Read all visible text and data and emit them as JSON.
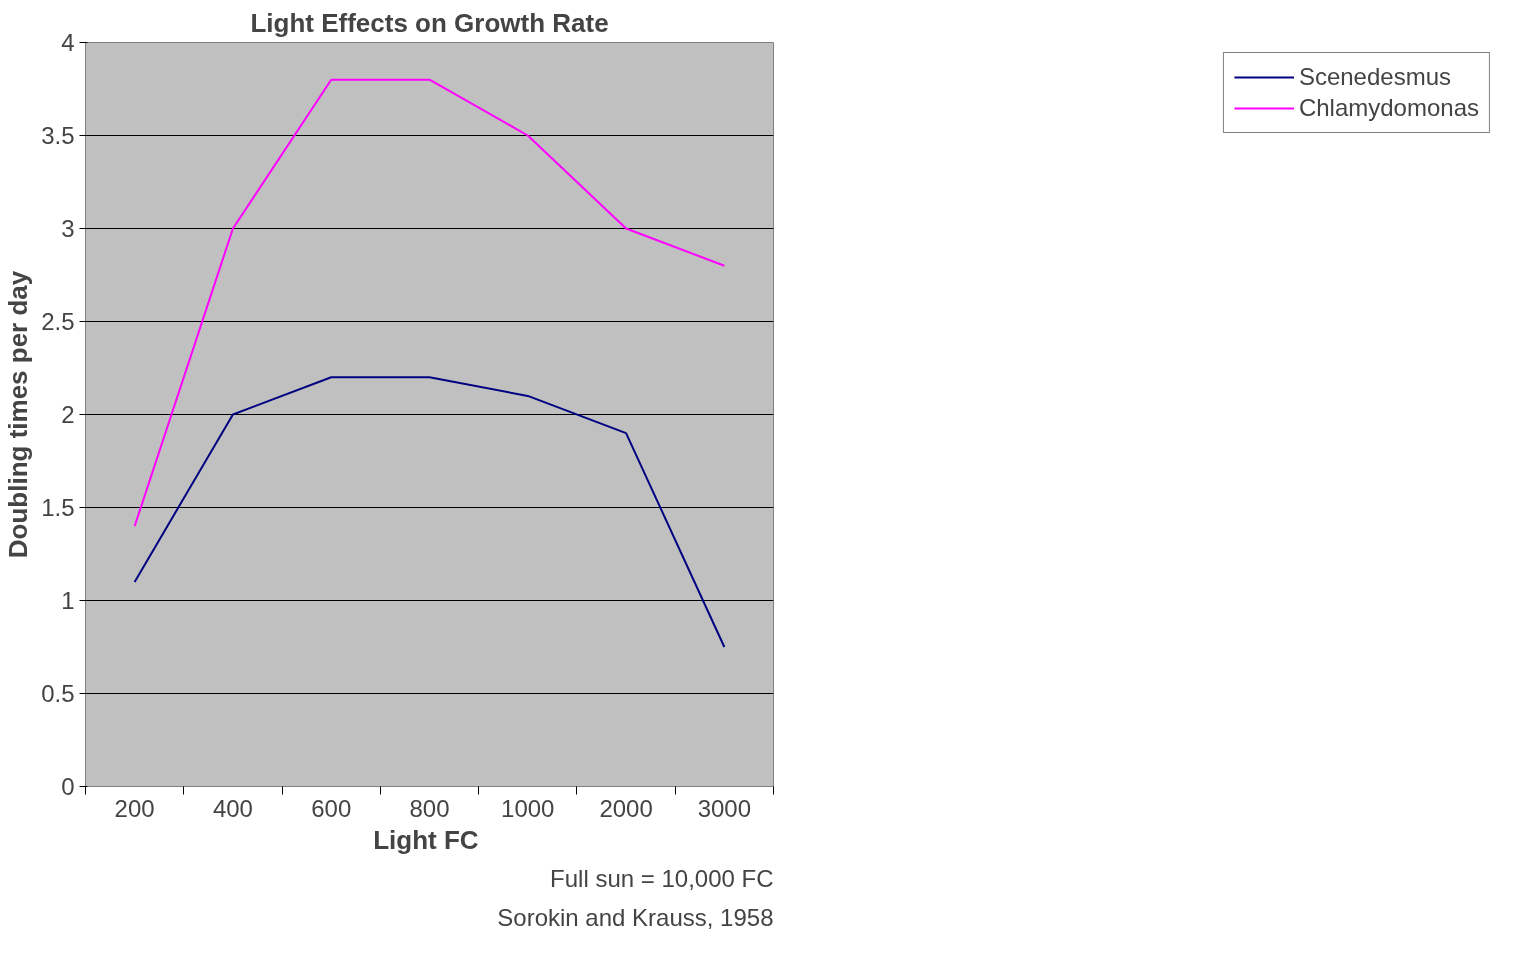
{
  "chart_data": {
    "type": "line",
    "title": "Light Effects on Growth Rate",
    "xlabel": "Light  FC",
    "ylabel": "Doubling times per day",
    "categories": [
      "200",
      "400",
      "600",
      "800",
      "1000",
      "2000",
      "3000"
    ],
    "series": [
      {
        "name": "Scenedesmus",
        "color": "#000080",
        "values": [
          1.1,
          2.0,
          2.2,
          2.2,
          2.1,
          1.9,
          0.75
        ]
      },
      {
        "name": "Chlamydomonas",
        "color": "#ff00ff",
        "values": [
          1.4,
          3.0,
          3.8,
          3.8,
          3.5,
          3.0,
          2.8
        ]
      }
    ],
    "ylim": [
      0,
      4
    ],
    "yticks": [
      0,
      0.5,
      1,
      1.5,
      2,
      2.5,
      3,
      3.5,
      4
    ],
    "grid": "y",
    "legend": "right",
    "marker": "none",
    "line_style": "solid",
    "annotations": [
      "Full sun = 10,000 FC",
      "Sorokin and Krauss, 1958"
    ]
  }
}
